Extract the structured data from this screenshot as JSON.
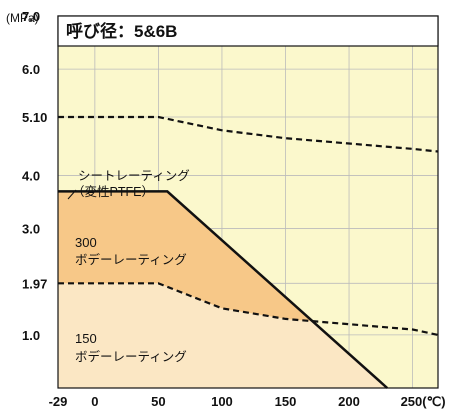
{
  "chart_data": {
    "type": "line",
    "title": "呼び径：5&6B",
    "y_unit": "(MPa)",
    "x_unit": "250(℃)",
    "x_ticks": [
      "-29",
      "0",
      "50",
      "100",
      "150",
      "200",
      "250(℃)"
    ],
    "y_ticks": [
      "7.0",
      "6.0",
      "5.10",
      "4.0",
      "3.0",
      "1.97",
      "1.0"
    ],
    "series": [
      {
        "name": "シートレーティング（変性PTFE）",
        "style": "dashed",
        "x": [
          -29,
          50,
          100,
          150,
          200,
          250,
          270
        ],
        "y": [
          5.1,
          5.1,
          4.85,
          4.7,
          4.6,
          4.5,
          4.45
        ]
      },
      {
        "name": "300 ボデーレーティング",
        "style": "solid",
        "x": [
          -29,
          57,
          230
        ],
        "y": [
          3.7,
          3.7,
          0
        ]
      },
      {
        "name": "150 ボデーレーティング",
        "style": "dashed",
        "x": [
          -29,
          50,
          100,
          150,
          200,
          250,
          270
        ],
        "y": [
          1.97,
          1.97,
          1.5,
          1.3,
          1.2,
          1.1,
          1.0
        ]
      }
    ],
    "annotations": {
      "seat_line1": "シートレーティング",
      "seat_line2": "（変性PTFE）",
      "r300_num": "300",
      "r300_label": "ボデーレーティング",
      "r150_num": "150",
      "r150_label": "ボデーレーティング"
    },
    "xlim": [
      -29,
      270
    ],
    "ylim": [
      0,
      7
    ],
    "colors": {
      "background": "#fbf8cc",
      "region_150": "#fbe7c4",
      "region_300": "#f7c888",
      "grid": "#bbbbbb"
    }
  }
}
